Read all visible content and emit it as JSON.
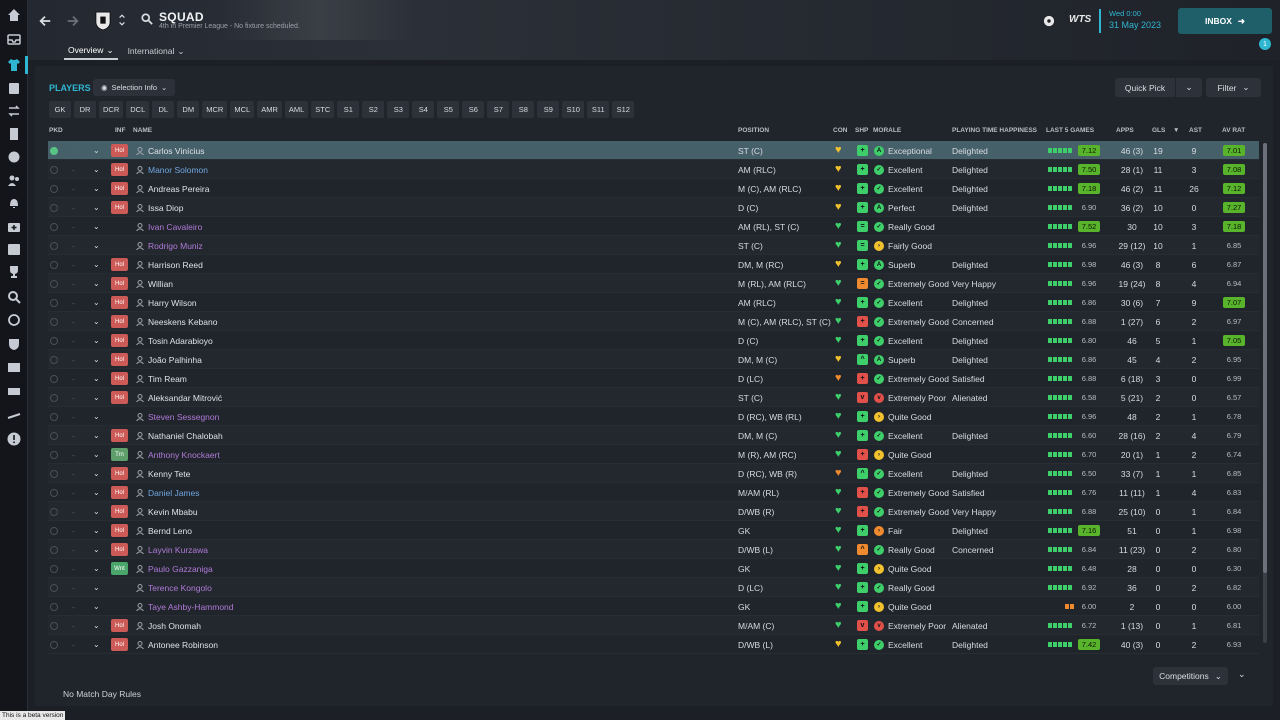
{
  "header": {
    "title": "SQUAD",
    "subtitle": "4th in Premier League - No fixture scheduled.",
    "tabs": [
      {
        "label": "Overview"
      },
      {
        "label": "International"
      }
    ],
    "date_day": "Wed 0:00",
    "date_date": "31 May 2023",
    "inbox_label": "INBOX",
    "notif_count": "1",
    "brand": "WTS"
  },
  "players_title": "PLAYERS",
  "selection_info_label": "Selection Info",
  "quick_pick_label": "Quick Pick",
  "filter_label": "Filter",
  "position_filters": [
    "GK",
    "DR",
    "DCR",
    "DCL",
    "DL",
    "DM",
    "MCR",
    "MCL",
    "AMR",
    "AML",
    "STC",
    "S1",
    "S2",
    "S3",
    "S4",
    "S5",
    "S6",
    "S7",
    "S8",
    "S9",
    "S10",
    "S11",
    "S12"
  ],
  "columns": {
    "pkd": "PKD",
    "inf": "INF",
    "name": "NAME",
    "position": "POSITION",
    "con": "CON",
    "shp": "SHP",
    "morale": "MORALE",
    "pth": "PLAYING TIME HAPPINESS",
    "last5": "LAST 5 GAMES",
    "apps": "APPS",
    "gls": "GLS",
    "ast": "AST",
    "avrat": "AV RAT"
  },
  "colors": {
    "accent": "#2fb7d1",
    "rating_high": "#58b42a",
    "morale_green": "#3ecf6b",
    "morale_yellow": "#f2c12e",
    "morale_red": "#e2504a",
    "morale_orange": "#f08a2e",
    "loanee_name": "#b07bd8",
    "highlight_name": "#6fa8e0"
  },
  "players": [
    {
      "pkd": true,
      "inf": "Hol",
      "name": "Carlos Vinícius",
      "nc": "w",
      "pos": "ST (C)",
      "con": "y",
      "shp": "g",
      "shp_sym": "+",
      "mor_c": "g",
      "mor_s": "A",
      "morale": "Exceptional",
      "pth": "Delighted",
      "form": "ggggg",
      "last5": "7.12",
      "hi5": true,
      "apps": "46 (3)",
      "gls": "19",
      "ast": "9",
      "av": "7.01",
      "hiav": true,
      "sel": true
    },
    {
      "pkd": false,
      "inf": "Hol",
      "name": "Manor Solomon",
      "nc": "b",
      "pos": "AM (RLC)",
      "con": "y",
      "shp": "g",
      "shp_sym": "+",
      "mor_c": "g",
      "mor_s": "✓",
      "morale": "Excellent",
      "pth": "Delighted",
      "form": "ggggg",
      "last5": "7.50",
      "hi5": true,
      "apps": "28 (1)",
      "gls": "11",
      "ast": "3",
      "av": "7.08",
      "hiav": true
    },
    {
      "pkd": false,
      "inf": "Hol",
      "name": "Andreas Pereira",
      "nc": "w",
      "pos": "M (C), AM (RLC)",
      "con": "y",
      "shp": "g",
      "shp_sym": "+",
      "mor_c": "g",
      "mor_s": "✓",
      "morale": "Excellent",
      "pth": "Delighted",
      "form": "ggggg",
      "last5": "7.18",
      "hi5": true,
      "apps": "46 (2)",
      "gls": "11",
      "ast": "26",
      "av": "7.12",
      "hiav": true
    },
    {
      "pkd": false,
      "inf": "Hol",
      "name": "Issa Diop",
      "nc": "w",
      "pos": "D (C)",
      "con": "y",
      "shp": "g",
      "shp_sym": "+",
      "mor_c": "g",
      "mor_s": "A",
      "morale": "Perfect",
      "pth": "Delighted",
      "form": "ggggg",
      "last5": "6.90",
      "hi5": false,
      "apps": "36 (2)",
      "gls": "10",
      "ast": "0",
      "av": "7.27",
      "hiav": true
    },
    {
      "pkd": false,
      "inf": "",
      "name": "Ivan Cavaleiro",
      "nc": "p",
      "pos": "AM (RL), ST (C)",
      "con": "g",
      "shp": "g",
      "shp_sym": "=",
      "mor_c": "g",
      "mor_s": "✓",
      "morale": "Really Good",
      "pth": "",
      "form": "ggggg",
      "last5": "7.52",
      "hi5": true,
      "apps": "30",
      "gls": "10",
      "ast": "3",
      "av": "7.18",
      "hiav": true
    },
    {
      "pkd": false,
      "inf": "",
      "name": "Rodrigo Muniz",
      "nc": "p",
      "pos": "ST (C)",
      "con": "g",
      "shp": "g",
      "shp_sym": "=",
      "mor_c": "y",
      "mor_s": "›",
      "morale": "Fairly Good",
      "pth": "",
      "form": "ggggg",
      "last5": "6.96",
      "hi5": false,
      "apps": "29 (12)",
      "gls": "10",
      "ast": "1",
      "av": "6.85",
      "hiav": false
    },
    {
      "pkd": false,
      "inf": "Hol",
      "name": "Harrison Reed",
      "nc": "w",
      "pos": "DM, M (RC)",
      "con": "y",
      "shp": "g",
      "shp_sym": "+",
      "mor_c": "g",
      "mor_s": "A",
      "morale": "Superb",
      "pth": "Delighted",
      "form": "ggggg",
      "last5": "6.98",
      "hi5": false,
      "apps": "46 (3)",
      "gls": "8",
      "ast": "6",
      "av": "6.87",
      "hiav": false
    },
    {
      "pkd": false,
      "inf": "Hol",
      "name": "Willian",
      "nc": "w",
      "pos": "M (RL), AM (RLC)",
      "con": "g",
      "shp": "o",
      "shp_sym": "=",
      "mor_c": "g",
      "mor_s": "✓",
      "morale": "Extremely Good",
      "pth": "Very Happy",
      "form": "ggggg",
      "last5": "6.96",
      "hi5": false,
      "apps": "19 (24)",
      "gls": "8",
      "ast": "4",
      "av": "6.94",
      "hiav": false
    },
    {
      "pkd": false,
      "inf": "Hol",
      "name": "Harry Wilson",
      "nc": "w",
      "pos": "AM (RLC)",
      "con": "g",
      "shp": "g",
      "shp_sym": "+",
      "mor_c": "g",
      "mor_s": "✓",
      "morale": "Excellent",
      "pth": "Delighted",
      "form": "ggggg",
      "last5": "6.86",
      "hi5": false,
      "apps": "30 (6)",
      "gls": "7",
      "ast": "9",
      "av": "7.07",
      "hiav": true
    },
    {
      "pkd": false,
      "inf": "Hol",
      "name": "Neeskens Kebano",
      "nc": "w",
      "pos": "M (C), AM (RLC), ST (C)",
      "con": "g",
      "shp": "r",
      "shp_sym": "+",
      "mor_c": "g",
      "mor_s": "✓",
      "morale": "Extremely Good",
      "pth": "Concerned",
      "form": "ggggg",
      "last5": "6.88",
      "hi5": false,
      "apps": "1 (27)",
      "gls": "6",
      "ast": "2",
      "av": "6.97",
      "hiav": false
    },
    {
      "pkd": false,
      "inf": "Hol",
      "name": "Tosin Adarabioyo",
      "nc": "w",
      "pos": "D (C)",
      "con": "g",
      "shp": "g",
      "shp_sym": "+",
      "mor_c": "g",
      "mor_s": "✓",
      "morale": "Excellent",
      "pth": "Delighted",
      "form": "ggggg",
      "last5": "6.80",
      "hi5": false,
      "apps": "46",
      "gls": "5",
      "ast": "1",
      "av": "7.05",
      "hiav": true
    },
    {
      "pkd": false,
      "inf": "Hol",
      "name": "João Palhinha",
      "nc": "w",
      "pos": "DM, M (C)",
      "con": "y",
      "shp": "g",
      "shp_sym": "^",
      "mor_c": "g",
      "mor_s": "A",
      "morale": "Superb",
      "pth": "Delighted",
      "form": "ggggg",
      "last5": "6.86",
      "hi5": false,
      "apps": "45",
      "gls": "4",
      "ast": "2",
      "av": "6.95",
      "hiav": false
    },
    {
      "pkd": false,
      "inf": "Hol",
      "name": "Tim Ream",
      "nc": "w",
      "pos": "D (LC)",
      "con": "o",
      "shp": "r",
      "shp_sym": "+",
      "mor_c": "g",
      "mor_s": "✓",
      "morale": "Extremely Good",
      "pth": "Satisfied",
      "form": "ggggg",
      "last5": "6.88",
      "hi5": false,
      "apps": "6 (18)",
      "gls": "3",
      "ast": "0",
      "av": "6.99",
      "hiav": false
    },
    {
      "pkd": false,
      "inf": "Hol",
      "name": "Aleksandar Mitrović",
      "nc": "w",
      "pos": "ST (C)",
      "con": "g",
      "shp": "r",
      "shp_sym": "v",
      "mor_c": "r",
      "mor_s": "v",
      "morale": "Extremely Poor",
      "pth": "Alienated",
      "form": "ggggg",
      "last5": "6.58",
      "hi5": false,
      "apps": "5 (21)",
      "gls": "2",
      "ast": "0",
      "av": "6.57",
      "hiav": false
    },
    {
      "pkd": false,
      "inf": "",
      "name": "Steven Sessegnon",
      "nc": "p",
      "pos": "D (RC), WB (RL)",
      "con": "g",
      "shp": "g",
      "shp_sym": "+",
      "mor_c": "y",
      "mor_s": "›",
      "morale": "Quite Good",
      "pth": "",
      "form": "ggggg",
      "last5": "6.96",
      "hi5": false,
      "apps": "48",
      "gls": "2",
      "ast": "1",
      "av": "6.78",
      "hiav": false
    },
    {
      "pkd": false,
      "inf": "Hol",
      "name": "Nathaniel Chalobah",
      "nc": "w",
      "pos": "DM, M (C)",
      "con": "g",
      "shp": "g",
      "shp_sym": "+",
      "mor_c": "g",
      "mor_s": "✓",
      "morale": "Excellent",
      "pth": "Delighted",
      "form": "ggggg",
      "last5": "6.60",
      "hi5": false,
      "apps": "28 (16)",
      "gls": "2",
      "ast": "4",
      "av": "6.79",
      "hiav": false
    },
    {
      "pkd": false,
      "inf": "Trn",
      "name": "Anthony Knockaert",
      "nc": "p",
      "pos": "M (R), AM (RC)",
      "con": "g",
      "shp": "r",
      "shp_sym": "+",
      "mor_c": "y",
      "mor_s": "›",
      "morale": "Quite Good",
      "pth": "",
      "form": "ggggg",
      "last5": "6.70",
      "hi5": false,
      "apps": "20 (1)",
      "gls": "1",
      "ast": "2",
      "av": "6.74",
      "hiav": false
    },
    {
      "pkd": false,
      "inf": "Hol",
      "name": "Kenny Tete",
      "nc": "w",
      "pos": "D (RC), WB (R)",
      "con": "o",
      "shp": "g",
      "shp_sym": "^",
      "mor_c": "g",
      "mor_s": "✓",
      "morale": "Excellent",
      "pth": "Delighted",
      "form": "ggggg",
      "last5": "6.50",
      "hi5": false,
      "apps": "33 (7)",
      "gls": "1",
      "ast": "1",
      "av": "6.85",
      "hiav": false
    },
    {
      "pkd": false,
      "inf": "Hol",
      "name": "Daniel James",
      "nc": "b",
      "pos": "M/AM (RL)",
      "con": "g",
      "shp": "r",
      "shp_sym": "+",
      "mor_c": "g",
      "mor_s": "✓",
      "morale": "Extremely Good",
      "pth": "Satisfied",
      "form": "ggggg",
      "last5": "6.76",
      "hi5": false,
      "apps": "11 (11)",
      "gls": "1",
      "ast": "4",
      "av": "6.83",
      "hiav": false
    },
    {
      "pkd": false,
      "inf": "Hol",
      "name": "Kevin Mbabu",
      "nc": "w",
      "pos": "D/WB (R)",
      "con": "g",
      "shp": "r",
      "shp_sym": "+",
      "mor_c": "g",
      "mor_s": "✓",
      "morale": "Extremely Good",
      "pth": "Very Happy",
      "form": "ggggg",
      "last5": "6.88",
      "hi5": false,
      "apps": "25 (10)",
      "gls": "0",
      "ast": "1",
      "av": "6.84",
      "hiav": false
    },
    {
      "pkd": false,
      "inf": "Hol",
      "name": "Bernd Leno",
      "nc": "w",
      "pos": "GK",
      "con": "g",
      "shp": "g",
      "shp_sym": "+",
      "mor_c": "o",
      "mor_s": "›",
      "morale": "Fair",
      "pth": "Delighted",
      "form": "ggggg",
      "last5": "7.16",
      "hi5": true,
      "apps": "51",
      "gls": "0",
      "ast": "1",
      "av": "6.98",
      "hiav": false
    },
    {
      "pkd": false,
      "inf": "Hol",
      "name": "Layvin Kurzawa",
      "nc": "p",
      "pos": "D/WB (L)",
      "con": "g",
      "shp": "o",
      "shp_sym": "^",
      "mor_c": "g",
      "mor_s": "✓",
      "morale": "Really Good",
      "pth": "Concerned",
      "form": "ggggg",
      "last5": "6.84",
      "hi5": false,
      "apps": "11 (23)",
      "gls": "0",
      "ast": "2",
      "av": "6.80",
      "hiav": false
    },
    {
      "pkd": false,
      "inf": "Wnt",
      "name": "Paulo Gazzaniga",
      "nc": "p",
      "pos": "GK",
      "con": "g",
      "shp": "g",
      "shp_sym": "+",
      "mor_c": "y",
      "mor_s": "›",
      "morale": "Quite Good",
      "pth": "",
      "form": "ggggg",
      "last5": "6.48",
      "hi5": false,
      "apps": "28",
      "gls": "0",
      "ast": "0",
      "av": "6.30",
      "hiav": false
    },
    {
      "pkd": false,
      "inf": "",
      "name": "Terence Kongolo",
      "nc": "p",
      "pos": "D (LC)",
      "con": "g",
      "shp": "g",
      "shp_sym": "+",
      "mor_c": "g",
      "mor_s": "✓",
      "morale": "Really Good",
      "pth": "",
      "form": "ggggg",
      "last5": "6.92",
      "hi5": false,
      "apps": "36",
      "gls": "0",
      "ast": "2",
      "av": "6.82",
      "hiav": false
    },
    {
      "pkd": false,
      "inf": "",
      "name": "Taye Ashby-Hammond",
      "nc": "p",
      "pos": "GK",
      "con": "g",
      "shp": "g",
      "shp_sym": "+",
      "mor_c": "y",
      "mor_s": "›",
      "morale": "Quite Good",
      "pth": "",
      "form": "oo",
      "last5": "6.00",
      "hi5": false,
      "apps": "2",
      "gls": "0",
      "ast": "0",
      "av": "6.00",
      "hiav": false
    },
    {
      "pkd": false,
      "inf": "Hol",
      "name": "Josh Onomah",
      "nc": "w",
      "pos": "M/AM (C)",
      "con": "g",
      "shp": "r",
      "shp_sym": "v",
      "mor_c": "r",
      "mor_s": "v",
      "morale": "Extremely Poor",
      "pth": "Alienated",
      "form": "ggggg",
      "last5": "6.72",
      "hi5": false,
      "apps": "1 (13)",
      "gls": "0",
      "ast": "1",
      "av": "6.81",
      "hiav": false
    },
    {
      "pkd": false,
      "inf": "Hol",
      "name": "Antonee Robinson",
      "nc": "w",
      "pos": "D/WB (L)",
      "con": "y",
      "shp": "g",
      "shp_sym": "+",
      "mor_c": "g",
      "mor_s": "✓",
      "morale": "Excellent",
      "pth": "Delighted",
      "form": "ggggg",
      "last5": "7.42",
      "hi5": true,
      "apps": "40 (3)",
      "gls": "0",
      "ast": "2",
      "av": "6.93",
      "hiav": false
    }
  ],
  "footer": {
    "rules": "No Match Day Rules",
    "competitions_label": "Competitions"
  },
  "beta_label": "This is a beta version"
}
